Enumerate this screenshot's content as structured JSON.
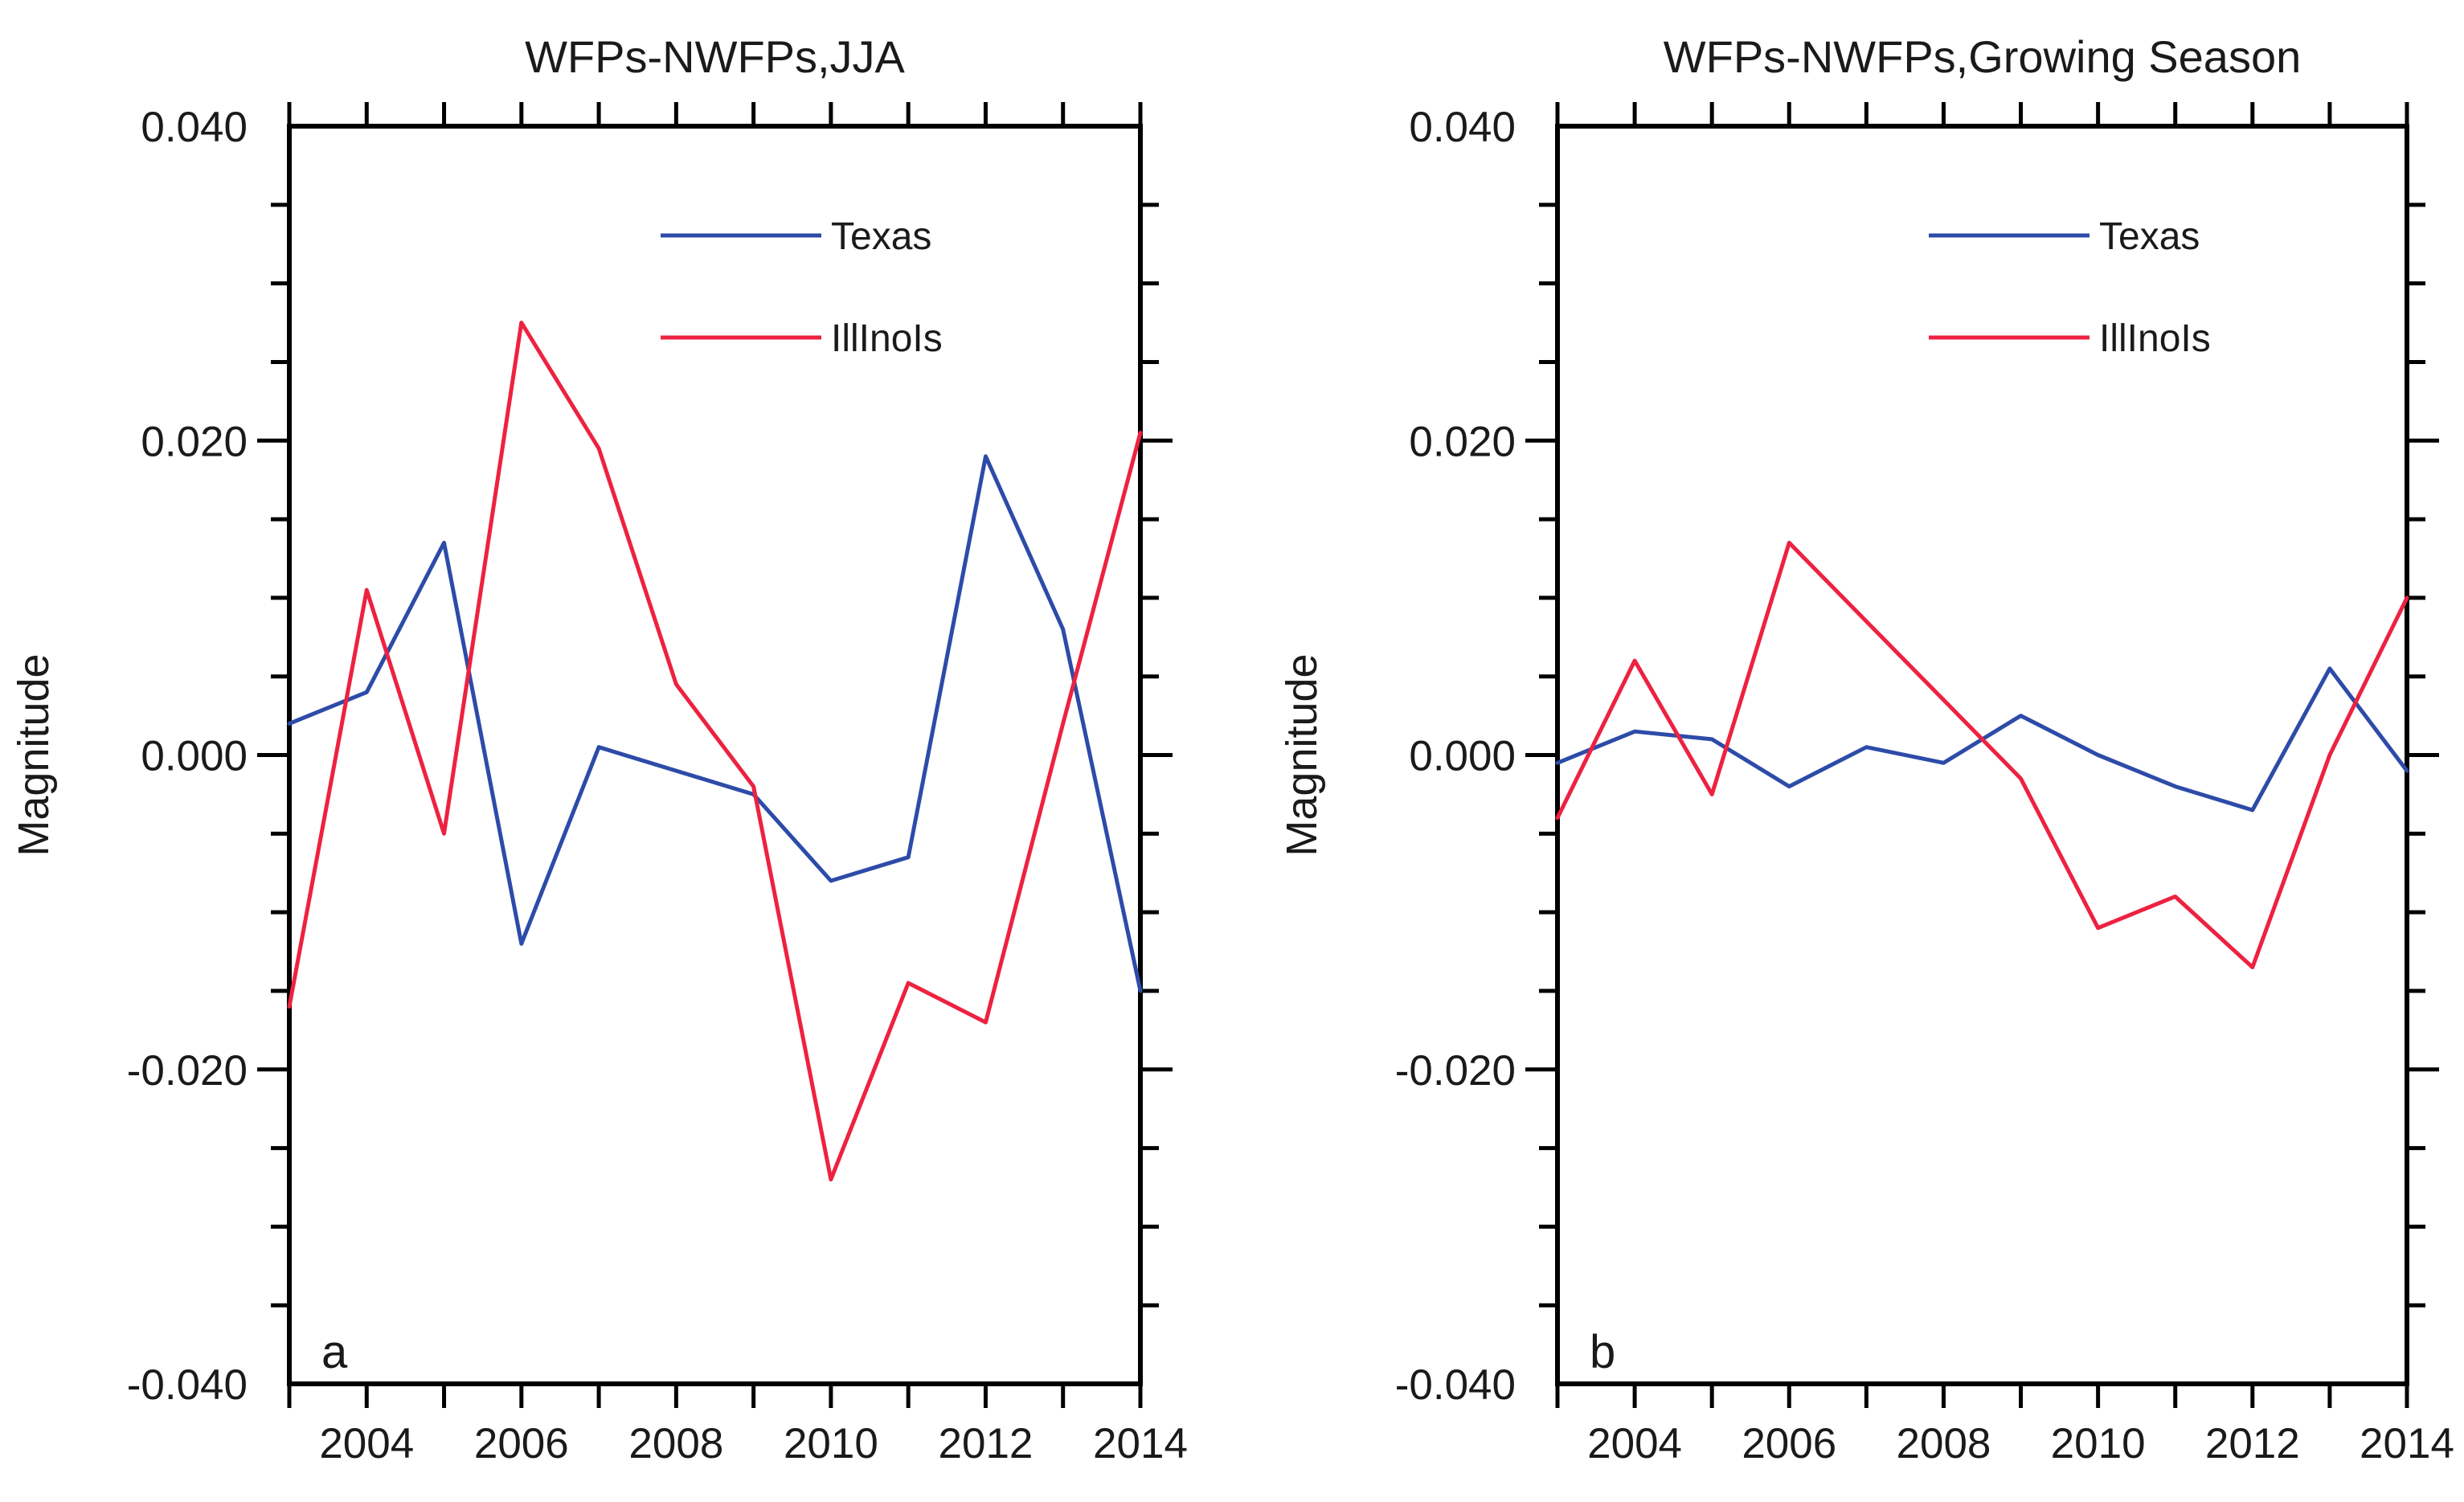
{
  "figure": {
    "background_color": "#ffffff",
    "axis_color": "#000000",
    "text_color": "#1a1a1a"
  },
  "chart_data": [
    {
      "type": "line",
      "panel_label": "a",
      "title": "WFPs-NWFPs,JJA",
      "ylabel": "Magnitude",
      "xlabel": "",
      "x": [
        2003,
        2004,
        2005,
        2006,
        2007,
        2008,
        2009,
        2010,
        2011,
        2012,
        2013,
        2014
      ],
      "xtick_labeled_years": [
        2004,
        2006,
        2008,
        2010,
        2012,
        2014
      ],
      "xtick_labels": [
        "2004",
        "2006",
        "2008",
        "2010",
        "2012",
        "2014"
      ],
      "ylim": [
        -0.04,
        0.04
      ],
      "ytick_major_values": [
        0.04,
        0.02,
        0.0,
        -0.02,
        -0.04
      ],
      "ytick_labels": [
        "0.040",
        "0.020",
        "0.000",
        "-0.020",
        "-0.040"
      ],
      "ytick_minor_step": 0.005,
      "grid": "off",
      "legend_position": "upper-center-inside",
      "legend": [
        {
          "label": "Texas",
          "color": "#2d4ba8"
        },
        {
          "label": "IllInoIs",
          "color": "#ed2240"
        }
      ],
      "series": [
        {
          "name": "Texas",
          "color": "#2d4ba8",
          "values": [
            0.002,
            0.004,
            0.0135,
            -0.012,
            0.0005,
            -0.001,
            -0.0025,
            -0.008,
            -0.0065,
            0.019,
            0.008,
            -0.015
          ]
        },
        {
          "name": "IllInoIs",
          "color": "#ed2240",
          "values": [
            -0.016,
            0.0105,
            -0.005,
            0.0275,
            0.0195,
            0.0045,
            -0.002,
            -0.027,
            -0.0145,
            -0.017,
            0.002,
            0.0205
          ]
        }
      ]
    },
    {
      "type": "line",
      "panel_label": "b",
      "title": "WFPs-NWFPs,Growing Season",
      "ylabel": "Magnitude",
      "xlabel": "",
      "x": [
        2003,
        2004,
        2005,
        2006,
        2007,
        2008,
        2009,
        2010,
        2011,
        2012,
        2013,
        2014
      ],
      "xtick_labeled_years": [
        2004,
        2006,
        2008,
        2010,
        2012,
        2014
      ],
      "xtick_labels": [
        "2004",
        "2006",
        "2008",
        "2010",
        "2012",
        "2014"
      ],
      "ylim": [
        -0.04,
        0.04
      ],
      "ytick_major_values": [
        0.04,
        0.02,
        0.0,
        -0.02,
        -0.04
      ],
      "ytick_labels": [
        "0.040",
        "0.020",
        "0.000",
        "-0.020",
        "-0.040"
      ],
      "ytick_minor_step": 0.005,
      "grid": "off",
      "legend_position": "upper-center-inside",
      "legend": [
        {
          "label": "Texas",
          "color": "#2d4ba8"
        },
        {
          "label": "IllInoIs",
          "color": "#ed2240"
        }
      ],
      "series": [
        {
          "name": "Texas",
          "color": "#2d4ba8",
          "values": [
            -0.0005,
            0.0015,
            0.001,
            -0.002,
            0.0005,
            -0.0005,
            0.0025,
            0.0,
            -0.002,
            -0.0035,
            0.0055,
            -0.001
          ]
        },
        {
          "name": "IllInoIs",
          "color": "#ed2240",
          "values": [
            -0.004,
            0.006,
            -0.0025,
            0.0135,
            0.0085,
            0.0035,
            -0.0015,
            -0.011,
            -0.009,
            -0.0135,
            0.0,
            0.01
          ]
        }
      ]
    }
  ]
}
